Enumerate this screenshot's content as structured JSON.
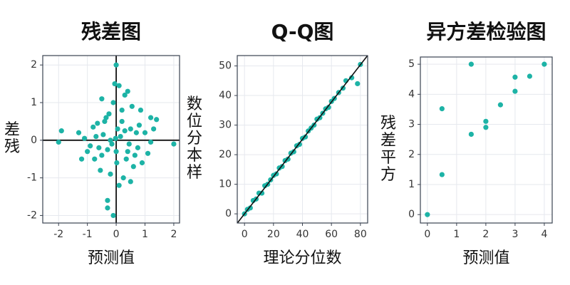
{
  "chart_data": [
    {
      "type": "scatter",
      "title": "残差图",
      "xlabel": "预测值",
      "ylabel": "残差",
      "color": "#1db3a6",
      "grid": true,
      "zero_lines": true,
      "xlim": [
        -2.55,
        2.2
      ],
      "ylim": [
        -2.2,
        2.25
      ],
      "xticks": [
        -2,
        -1,
        0,
        1,
        2
      ],
      "yticks": [
        -2,
        -1,
        0,
        1,
        2
      ],
      "x": [
        0,
        -0.05,
        0.1,
        -2,
        -1.9,
        2,
        0.3,
        -0.1,
        -0.3,
        -0.3,
        1.2,
        1.4,
        1.2,
        -1.2,
        0.9,
        0.5,
        -0.5,
        0.2,
        -0.2,
        0.7,
        -0.7,
        0.4,
        -0.4,
        0.1,
        -0.1,
        0.6,
        -0.6,
        0.8,
        -0.8,
        0.15,
        -0.15,
        0.35,
        -0.35,
        0.55,
        -0.55,
        1.0,
        -1.0,
        0.25,
        -0.25,
        0.05,
        0.45,
        -0.45,
        0.65,
        -0.65,
        0.02,
        -0.02,
        0.3,
        -0.3,
        0.85,
        -0.9,
        1.1,
        -1.1,
        0.5,
        -0.5,
        0.0,
        0.2,
        -0.2,
        0.75,
        -0.75,
        1.3,
        -1.3,
        0.4
      ],
      "values": [
        2,
        1.5,
        1.45,
        -0.05,
        0.25,
        -0.1,
        1.2,
        -2,
        -1.6,
        -1.8,
        0.6,
        0.55,
        -0.05,
        -0.5,
        -0.6,
        0.3,
        -0.4,
        0.8,
        -0.9,
        0.2,
        0.1,
        -0.3,
        0.5,
        -1.2,
        1.0,
        -0.7,
        -0.2,
        0.4,
        0.35,
        0.1,
        -0.1,
        -0.5,
        0.6,
        0.9,
        -0.8,
        0.2,
        -0.3,
        -1.0,
        0.7,
        0.3,
        -0.1,
        0.15,
        -0.4,
        0.45,
        -0.6,
        0.05,
        0.25,
        -0.25,
        0.8,
        -0.15,
        -0.35,
        0.05,
        -1.1,
        1.1,
        -0.3,
        0.5,
        0.0,
        -0.2,
        -0.5,
        0.3,
        0.2,
        1.3
      ]
    },
    {
      "type": "scatter",
      "title": "Q-Q图",
      "xlabel": "理论分位数",
      "ylabel": "样本分位数",
      "color": "#1db3a6",
      "grid": true,
      "reference_line": {
        "intercept": 0,
        "slope": 0.63
      },
      "xlim": [
        -5,
        85
      ],
      "ylim": [
        -3.1,
        53.5
      ],
      "xticks": [
        0,
        20,
        40,
        60,
        80
      ],
      "yticks": [
        0,
        10,
        20,
        30,
        40,
        50
      ],
      "x": [
        0,
        2,
        4,
        6,
        8,
        10,
        12,
        14,
        16,
        18,
        20,
        22,
        24,
        26,
        28,
        30,
        32,
        34,
        36,
        38,
        40,
        42,
        44,
        46,
        48,
        50,
        52,
        54,
        56,
        58,
        60,
        62,
        65,
        68,
        70,
        74,
        78,
        80
      ],
      "values": [
        0,
        1.5,
        2,
        4.5,
        5,
        7,
        7,
        9.5,
        10,
        11.5,
        13,
        13.5,
        15.5,
        16,
        18,
        18.5,
        20.5,
        21,
        23,
        23.5,
        25.5,
        26,
        28,
        29,
        30,
        32,
        32.5,
        34,
        35.5,
        36,
        38,
        39,
        41,
        42.5,
        45,
        46,
        44,
        50.5
      ]
    },
    {
      "type": "scatter",
      "title": "异方差检验图",
      "xlabel": "预测值",
      "ylabel": "方平差残",
      "color": "#1db3a6",
      "grid": true,
      "xlim": [
        -0.24,
        4.27
      ],
      "ylim": [
        -0.28,
        5.24
      ],
      "xticks": [
        0,
        1,
        2,
        3,
        4
      ],
      "yticks": [
        0,
        1,
        2,
        3,
        4,
        5
      ],
      "x": [
        0,
        0.5,
        0.5,
        1.5,
        1.5,
        2,
        2,
        2.5,
        3,
        3,
        3.5,
        4
      ],
      "values": [
        0,
        3.52,
        1.33,
        5,
        2.67,
        3.1,
        2.9,
        3.65,
        4.57,
        4.1,
        4.6,
        5
      ]
    }
  ]
}
